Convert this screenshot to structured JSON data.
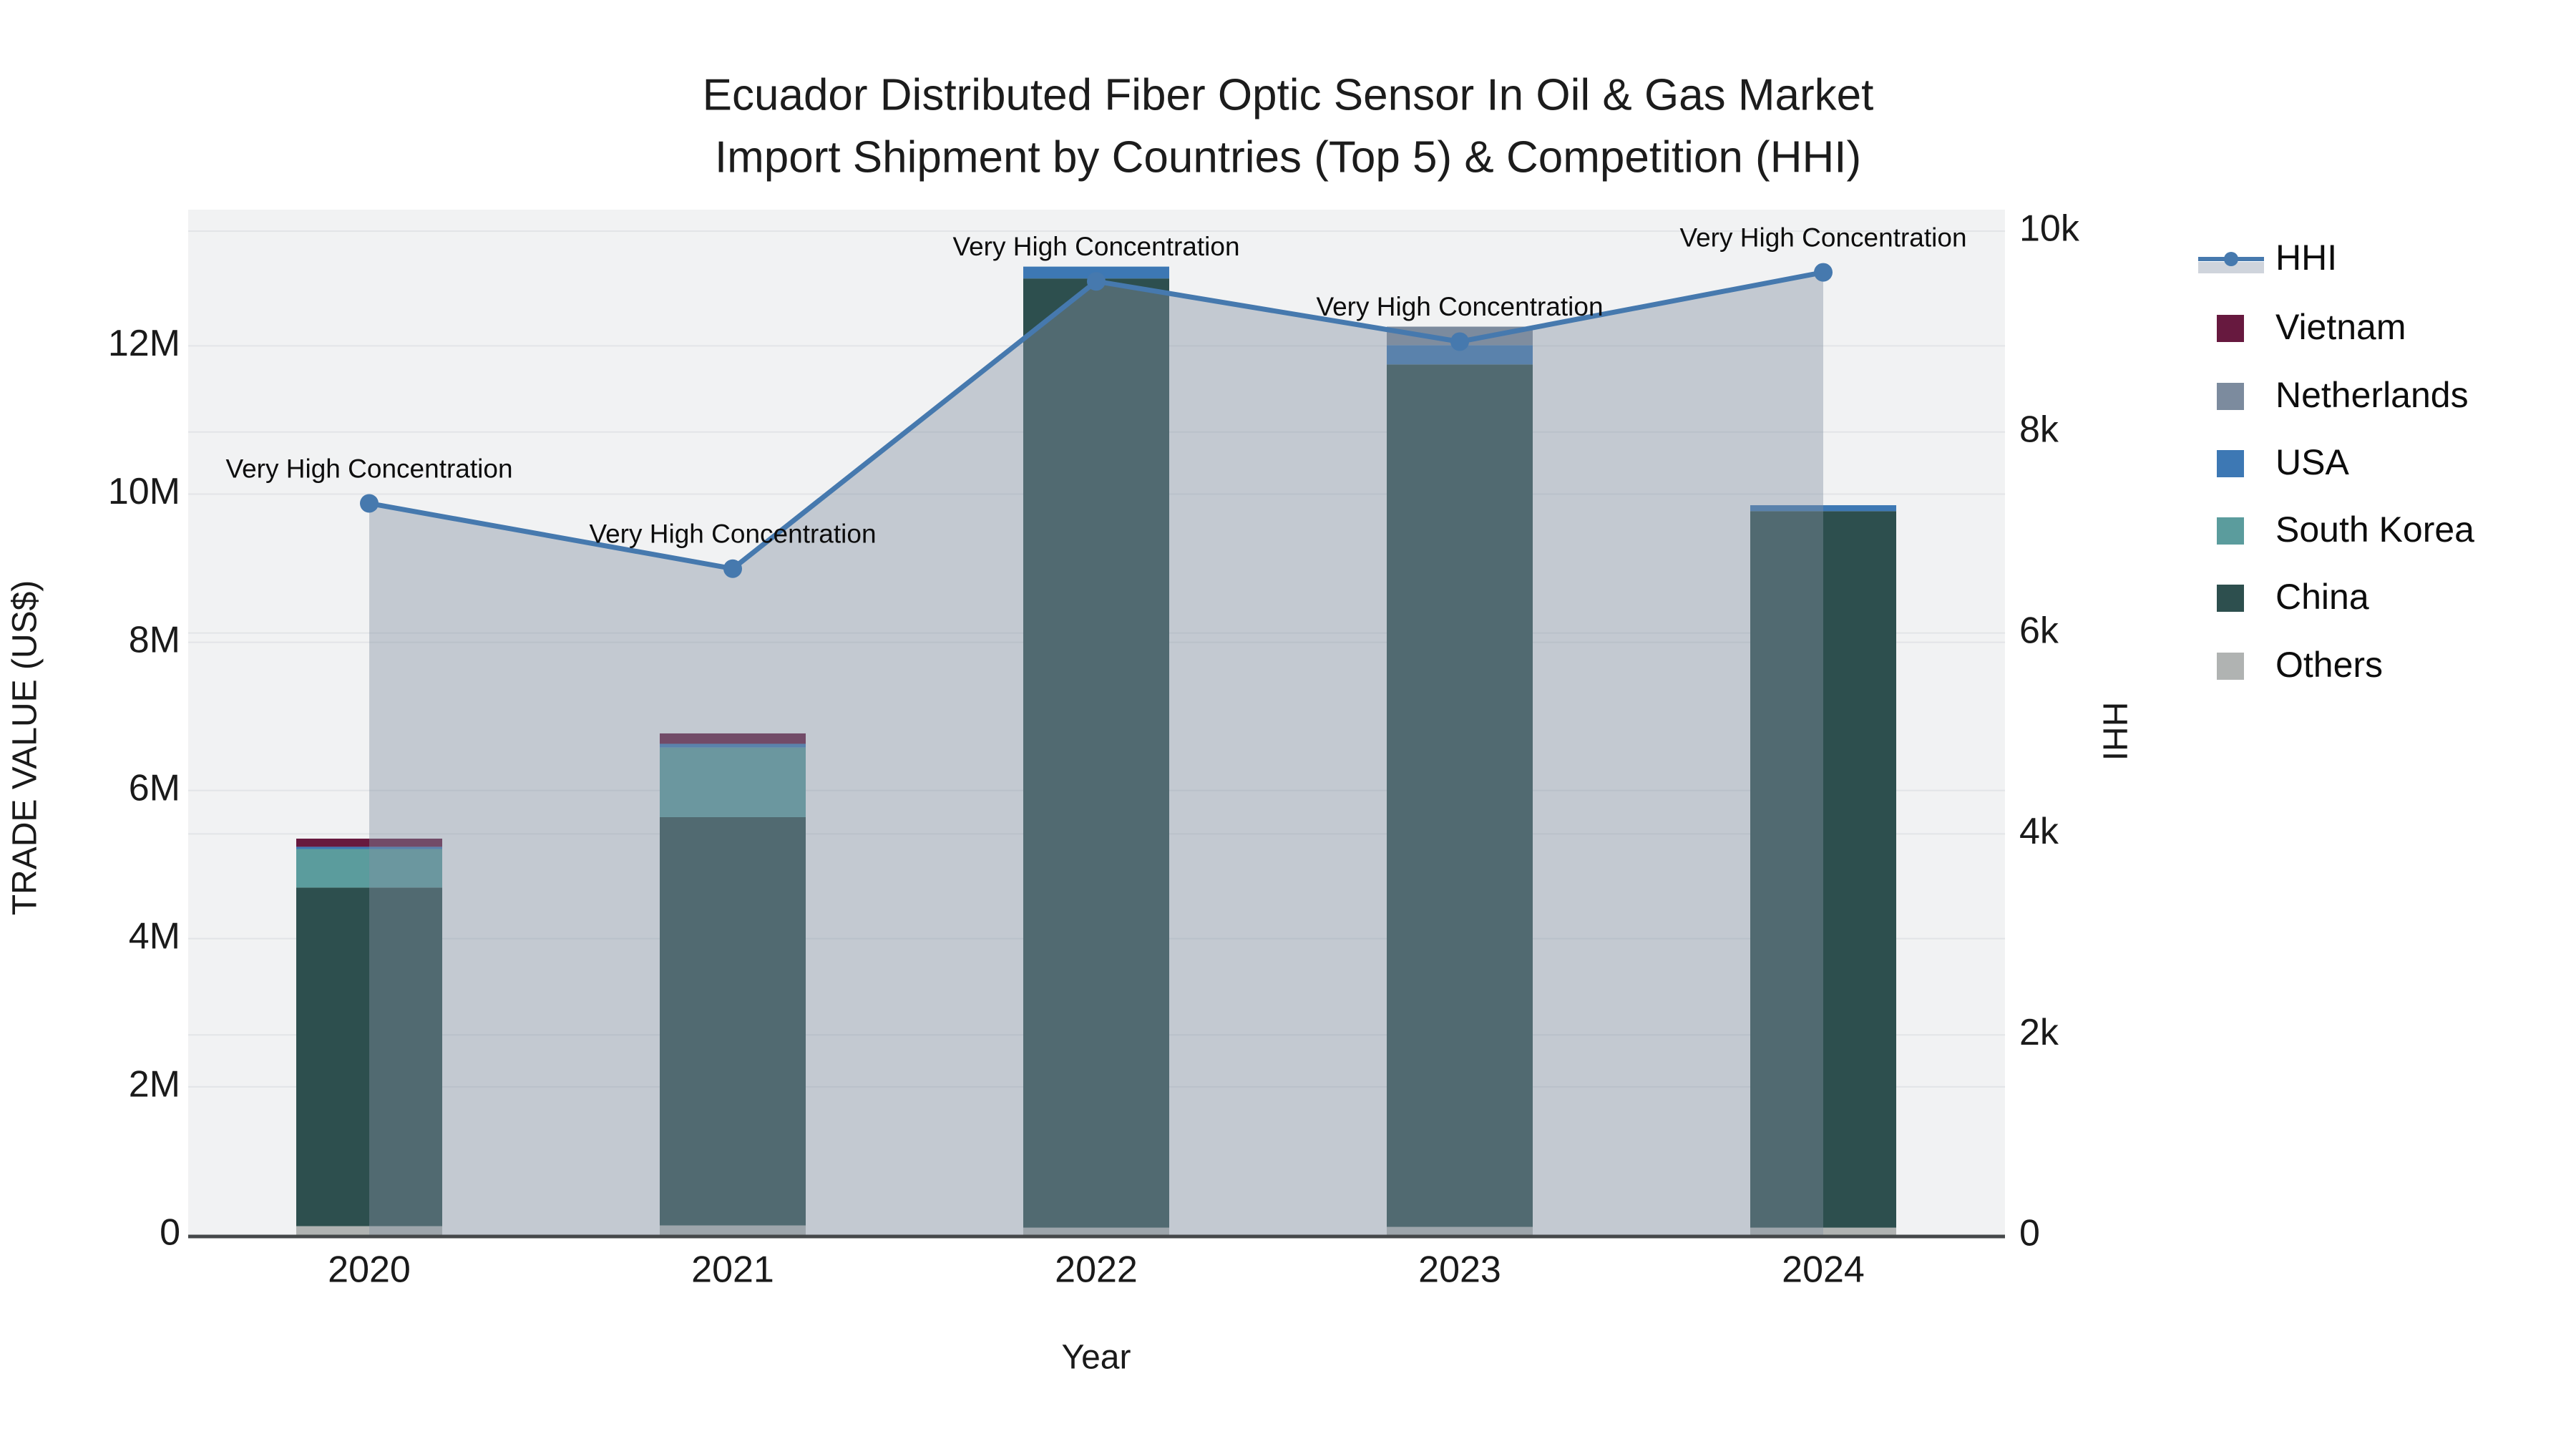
{
  "title": {
    "line1": "Ecuador Distributed Fiber Optic Sensor In Oil & Gas Market",
    "line2": "Import Shipment by Countries (Top 5) & Competition (HHI)"
  },
  "axes": {
    "left": {
      "title": "TRADE VALUE (US$)",
      "tick_labels": [
        "0",
        "2M",
        "4M",
        "6M",
        "8M",
        "10M",
        "12M"
      ],
      "tick_values_millions": [
        0,
        2,
        4,
        6,
        8,
        10,
        12
      ]
    },
    "right": {
      "title": "HHI",
      "tick_labels": [
        "0",
        "2k",
        "4k",
        "6k",
        "8k",
        "10k"
      ],
      "tick_values": [
        0,
        2000,
        4000,
        6000,
        8000,
        10000
      ]
    },
    "x": {
      "title": "Year",
      "tick_labels": [
        "2020",
        "2021",
        "2022",
        "2023",
        "2024"
      ]
    }
  },
  "annotation_text": "Very High Concentration",
  "legend": {
    "items": [
      {
        "label": "HHI",
        "type": "line",
        "color": "#4679ae"
      },
      {
        "label": "Vietnam",
        "type": "swatch",
        "color": "#67193f"
      },
      {
        "label": "Netherlands",
        "type": "swatch",
        "color": "#7c8b9e"
      },
      {
        "label": "USA",
        "type": "swatch",
        "color": "#3d78b4"
      },
      {
        "label": "South Korea",
        "type": "swatch",
        "color": "#5b9c9d"
      },
      {
        "label": "China",
        "type": "swatch",
        "color": "#2d4f4e"
      },
      {
        "label": "Others",
        "type": "swatch",
        "color": "#b0b3b2"
      }
    ]
  },
  "colors": {
    "plot_bg": "#f1f2f3",
    "grid": "#e2e4e7",
    "axis_line": "#45484a",
    "hhi_line": "#4679ae",
    "hhi_fill": "rgba(132,145,162,0.42)",
    "legend_band": "#cfd4dc"
  },
  "chart_data": {
    "type": "combo-stacked-bar-line",
    "categories": [
      "2020",
      "2021",
      "2022",
      "2023",
      "2024"
    ],
    "xlabel": "Year",
    "ylabel_left": "TRADE VALUE (US$)",
    "ylabel_right": "HHI",
    "ylim_left_millions": [
      0,
      13.85
    ],
    "ylim_right": [
      0,
      10200
    ],
    "grid": true,
    "legend_position": "right",
    "bar_stack_order_bottom_to_top": [
      "Others",
      "China",
      "South Korea",
      "USA",
      "Netherlands",
      "Vietnam"
    ],
    "series": [
      {
        "name": "Others",
        "type": "bar",
        "color": "#b0b3b2",
        "values_millions": [
          0.12,
          0.13,
          0.1,
          0.11,
          0.1
        ]
      },
      {
        "name": "China",
        "type": "bar",
        "color": "#2d4f4e",
        "values_millions": [
          4.57,
          5.51,
          12.81,
          11.64,
          9.67
        ]
      },
      {
        "name": "South Korea",
        "type": "bar",
        "color": "#5b9c9d",
        "values_millions": [
          0.52,
          0.94,
          0,
          0,
          0
        ]
      },
      {
        "name": "USA",
        "type": "bar",
        "color": "#3d78b4",
        "values_millions": [
          0.03,
          0.05,
          0.16,
          0.26,
          0.08
        ]
      },
      {
        "name": "Netherlands",
        "type": "bar",
        "color": "#7c8b9e",
        "values_millions": [
          0,
          0,
          0,
          0.25,
          0
        ]
      },
      {
        "name": "Vietnam",
        "type": "bar",
        "color": "#67193f",
        "values_millions": [
          0.11,
          0.14,
          0,
          0,
          0
        ]
      }
    ],
    "bar_totals_millions": [
      5.35,
      6.77,
      13.07,
      12.26,
      9.85
    ],
    "line_series": {
      "name": "HHI",
      "axis": "right",
      "color": "#4679ae",
      "values": [
        7290,
        6640,
        9500,
        8900,
        9590
      ],
      "area_fill": true,
      "point_annotations": [
        "Very High Concentration",
        "Very High Concentration",
        "Very High Concentration",
        "Very High Concentration",
        "Very High Concentration"
      ]
    }
  }
}
